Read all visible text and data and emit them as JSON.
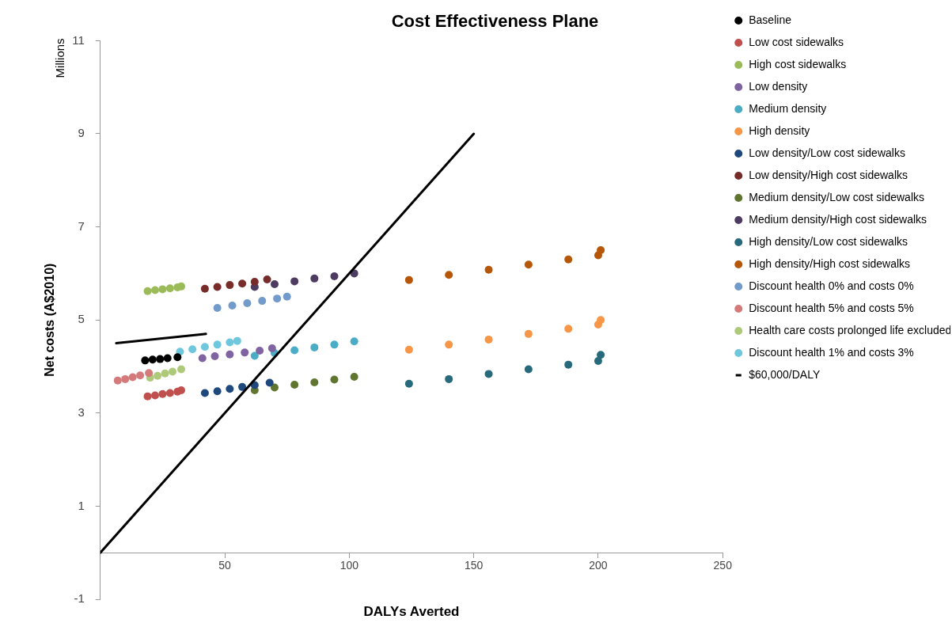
{
  "chart_data": {
    "type": "scatter",
    "title": "Cost Effectiveness Plane",
    "xlabel": "DALYs Averted",
    "ylabel": "Net costs (A$2010)",
    "annotations": [
      "Millions"
    ],
    "xlim": [
      0,
      250
    ],
    "xticks": [
      {
        "value": 0,
        "label": null
      },
      50,
      100,
      150,
      200,
      250
    ],
    "ylim": [
      -1,
      11
    ],
    "yticks": [
      -1,
      1,
      3,
      5,
      7,
      9,
      11
    ],
    "grid": false,
    "legend": "right",
    "marker": "circle",
    "series": [
      {
        "name": "Baseline",
        "color": "#000000",
        "x": [
          18,
          21,
          24,
          27,
          31
        ],
        "values": [
          4.13,
          4.15,
          4.16,
          4.18,
          4.2
        ]
      },
      {
        "name": "Low cost sidewalks",
        "color": "#c0504d",
        "x": [
          19,
          22,
          25,
          28,
          31,
          32.5
        ],
        "values": [
          3.36,
          3.38,
          3.41,
          3.43,
          3.46,
          3.49
        ]
      },
      {
        "name": "High cost sidewalks",
        "color": "#9bbb59",
        "x": [
          19,
          22,
          25,
          28,
          31,
          32.5
        ],
        "values": [
          5.62,
          5.64,
          5.66,
          5.68,
          5.7,
          5.72
        ]
      },
      {
        "name": "Low density",
        "color": "#8064a2",
        "x": [
          41,
          46,
          52,
          58,
          64,
          69
        ],
        "values": [
          4.18,
          4.22,
          4.26,
          4.3,
          4.34,
          4.39
        ]
      },
      {
        "name": "Medium density",
        "color": "#4bacc6",
        "x": [
          62,
          70,
          78,
          86,
          94,
          102
        ],
        "values": [
          4.23,
          4.29,
          4.35,
          4.41,
          4.47,
          4.54
        ]
      },
      {
        "name": "High density",
        "color": "#f79646",
        "x": [
          124,
          140,
          156,
          172,
          188,
          200,
          201
        ],
        "values": [
          4.36,
          4.47,
          4.58,
          4.7,
          4.81,
          4.9,
          5.0
        ]
      },
      {
        "name": "Low density/Low cost sidewalks",
        "color": "#1f497d",
        "x": [
          42,
          47,
          52,
          57,
          62,
          68
        ],
        "values": [
          3.43,
          3.47,
          3.52,
          3.56,
          3.6,
          3.65
        ]
      },
      {
        "name": "Low density/High cost sidewalks",
        "color": "#772c2a",
        "x": [
          42,
          47,
          52,
          57,
          62,
          67
        ],
        "values": [
          5.67,
          5.71,
          5.75,
          5.78,
          5.82,
          5.87
        ]
      },
      {
        "name": "Medium density/Low cost sidewalks",
        "color": "#5f7530",
        "x": [
          62,
          70,
          78,
          86,
          94,
          102
        ],
        "values": [
          3.49,
          3.55,
          3.61,
          3.66,
          3.72,
          3.78
        ]
      },
      {
        "name": "Medium density/High cost sidewalks",
        "color": "#4d3b62",
        "x": [
          62,
          70,
          78,
          86,
          94,
          102
        ],
        "values": [
          5.71,
          5.77,
          5.83,
          5.89,
          5.94,
          6.0
        ]
      },
      {
        "name": "High density/Low cost sidewalks",
        "color": "#276a7c",
        "x": [
          124,
          140,
          156,
          172,
          188,
          200,
          201
        ],
        "values": [
          3.63,
          3.73,
          3.84,
          3.94,
          4.04,
          4.12,
          4.25
        ]
      },
      {
        "name": "High density/High cost sidewalks",
        "color": "#b65708",
        "x": [
          124,
          140,
          156,
          172,
          188,
          200,
          201
        ],
        "values": [
          5.86,
          5.97,
          6.08,
          6.19,
          6.3,
          6.39,
          6.5
        ]
      },
      {
        "name": "Discount health 0% and costs 0%",
        "color": "#729aca",
        "x": [
          47,
          53,
          59,
          65,
          71,
          75
        ],
        "values": [
          5.26,
          5.31,
          5.36,
          5.41,
          5.46,
          5.5
        ]
      },
      {
        "name": "Discount health 5% and costs 5%",
        "color": "#d57a7a",
        "x": [
          7,
          10,
          13,
          16,
          19.5
        ],
        "values": [
          3.7,
          3.73,
          3.77,
          3.81,
          3.86
        ]
      },
      {
        "name": "Health care costs prolonged life excluded",
        "color": "#afc97a",
        "x": [
          20,
          23,
          26,
          29,
          32.5
        ],
        "values": [
          3.76,
          3.8,
          3.85,
          3.89,
          3.94
        ]
      },
      {
        "name": "Discount health 1% and costs 3%",
        "color": "#6fc7dd",
        "x": [
          32,
          37,
          42,
          47,
          52,
          55
        ],
        "values": [
          4.32,
          4.37,
          4.42,
          4.47,
          4.52,
          4.55
        ]
      },
      {
        "name": "$60,000/DALY",
        "type": "line",
        "marker": "none",
        "color": "#000000",
        "x": [
          0,
          150
        ],
        "values": [
          0,
          9
        ]
      },
      {
        "type": "line",
        "marker": "none",
        "color": "#000000",
        "x": [
          6.4,
          42.4
        ],
        "values": [
          4.5,
          4.7
        ]
      }
    ]
  }
}
